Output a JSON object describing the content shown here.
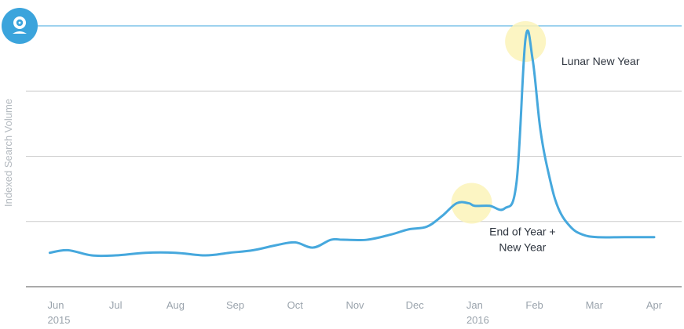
{
  "logo": {
    "icon": "webcam-icon",
    "color": "#3ba4dc"
  },
  "colors": {
    "line": "#46a8dd",
    "grid": "#cccccc",
    "top_rule": "#3ba4dc",
    "highlight": "#fbf3b8"
  },
  "chart_data": {
    "type": "line",
    "title": "",
    "ylabel": "Indexed Search Volume",
    "xlabel": "",
    "grid": true,
    "ylim": [
      0,
      100
    ],
    "x_ticks": [
      {
        "month": "Jun",
        "year": "2015",
        "x": 0
      },
      {
        "month": "Jul",
        "year": "",
        "x": 1
      },
      {
        "month": "Aug",
        "year": "",
        "x": 2
      },
      {
        "month": "Sep",
        "year": "",
        "x": 3
      },
      {
        "month": "Oct",
        "year": "",
        "x": 4
      },
      {
        "month": "Nov",
        "year": "",
        "x": 5
      },
      {
        "month": "Dec",
        "year": "",
        "x": 6
      },
      {
        "month": "Jan",
        "year": "2016",
        "x": 7
      },
      {
        "month": "Feb",
        "year": "",
        "x": 8
      },
      {
        "month": "Mar",
        "year": "",
        "x": 9
      },
      {
        "month": "Apr",
        "year": "",
        "x": 10
      }
    ],
    "series": [
      {
        "x": [
          -0.1,
          0.2,
          0.6,
          1.0,
          1.5,
          2.0,
          2.5,
          2.9,
          3.3,
          3.7,
          4.0,
          4.3,
          4.6,
          4.8,
          5.2,
          5.6,
          5.9,
          6.2,
          6.45,
          6.7,
          6.9,
          7.0,
          7.25,
          7.5,
          7.7,
          7.85,
          7.97,
          8.1,
          8.25,
          8.4,
          8.6,
          8.8,
          9.05,
          9.5,
          10.0
        ],
        "y": [
          13,
          14,
          12,
          12,
          13,
          13,
          12,
          13,
          14,
          16,
          17,
          15,
          18,
          18,
          18,
          20,
          22,
          23,
          27,
          32,
          32,
          31,
          31,
          30,
          40,
          95,
          87,
          60,
          42,
          30,
          23,
          20,
          19,
          19,
          19
        ]
      }
    ],
    "highlights": [
      {
        "x": 6.95,
        "y": 32
      },
      {
        "x": 7.85,
        "y": 94
      }
    ],
    "annotations": [
      {
        "text": "Lunar New Year",
        "x": 8.45,
        "y": 85
      },
      {
        "lines": [
          "End of Year +",
          "New Year"
        ],
        "x": 7.8,
        "y": 22
      }
    ]
  }
}
